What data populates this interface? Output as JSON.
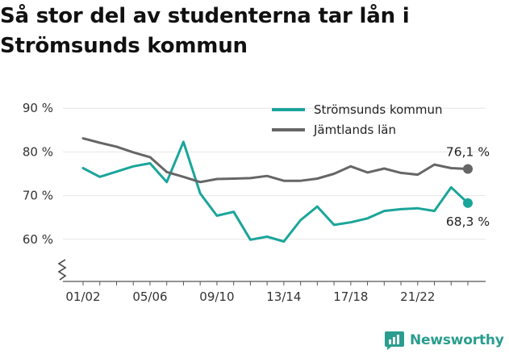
{
  "title": "Så stor del av studenterna tar lån i Strömsunds kommun",
  "brand": {
    "name": "Newsworthy",
    "icon": "newsworthy-logo-icon",
    "color": "#2a9d8f"
  },
  "colors": {
    "series_teal": "#1aa59a",
    "series_grey": "#666666",
    "axis": "#555555",
    "grid": "#e6e6e6"
  },
  "chart_data": {
    "type": "line",
    "title": "Så stor del av studenterna tar lån i Strömsunds kommun",
    "xlabel": "",
    "ylabel": "",
    "ylim": [
      50,
      90
    ],
    "y_axis_break": true,
    "y_ticks": [
      {
        "value": 60,
        "label": "60 %"
      },
      {
        "value": 70,
        "label": "70 %"
      },
      {
        "value": 80,
        "label": "80 %"
      },
      {
        "value": 90,
        "label": "90 %"
      }
    ],
    "x": [
      "01/02",
      "02/03",
      "03/04",
      "04/05",
      "05/06",
      "06/07",
      "07/08",
      "08/09",
      "09/10",
      "10/11",
      "11/12",
      "12/13",
      "13/14",
      "14/15",
      "15/16",
      "16/17",
      "17/18",
      "18/19",
      "19/20",
      "20/21",
      "21/22",
      "22/23",
      "23/24",
      "24/25"
    ],
    "x_tick_labels": [
      "01/02",
      "05/06",
      "09/10",
      "13/14",
      "17/18",
      "21/22"
    ],
    "grid": true,
    "legend_position": "top-right",
    "series": [
      {
        "name": "Strömsunds kommun",
        "color": "#1aa59a",
        "values": [
          76.3,
          74.3,
          75.5,
          76.7,
          77.4,
          73.1,
          82.3,
          70.5,
          65.4,
          66.3,
          59.9,
          60.6,
          59.5,
          64.4,
          67.5,
          63.3,
          63.9,
          64.8,
          66.5,
          66.9,
          67.1,
          66.5,
          71.9,
          68.3
        ],
        "end_label": "68,3 %"
      },
      {
        "name": "Jämtlands län",
        "color": "#666666",
        "values": [
          83.1,
          82.1,
          81.2,
          79.9,
          78.8,
          75.4,
          74.3,
          73.1,
          73.8,
          73.9,
          74.0,
          74.5,
          73.4,
          73.4,
          73.9,
          75.0,
          76.7,
          75.3,
          76.2,
          75.2,
          74.8,
          77.1,
          76.3,
          76.1
        ],
        "end_label": "76,1 %"
      }
    ]
  }
}
